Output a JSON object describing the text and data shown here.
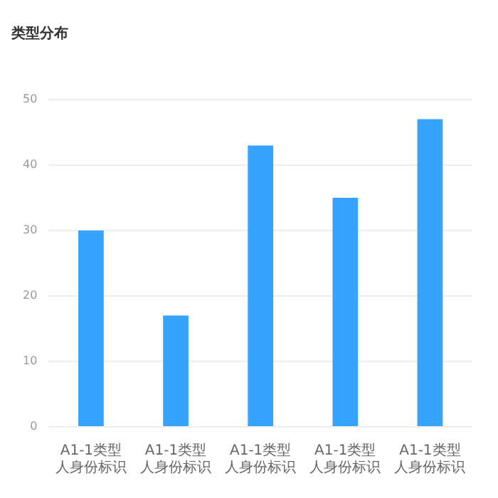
{
  "chart_data": {
    "type": "bar",
    "title": "类型分布",
    "categories": [
      "A1-1类型人身份标识",
      "A1-1类型人身份标识",
      "A1-1类型人身份标识",
      "A1-1类型人身份标识",
      "A1-1类型人身份标识"
    ],
    "values": [
      30,
      17,
      43,
      35,
      47
    ],
    "color": "#36a3ff",
    "ylim": [
      0,
      50
    ],
    "yticks": [
      0,
      10,
      20,
      30,
      40,
      50
    ],
    "grid": "y"
  }
}
